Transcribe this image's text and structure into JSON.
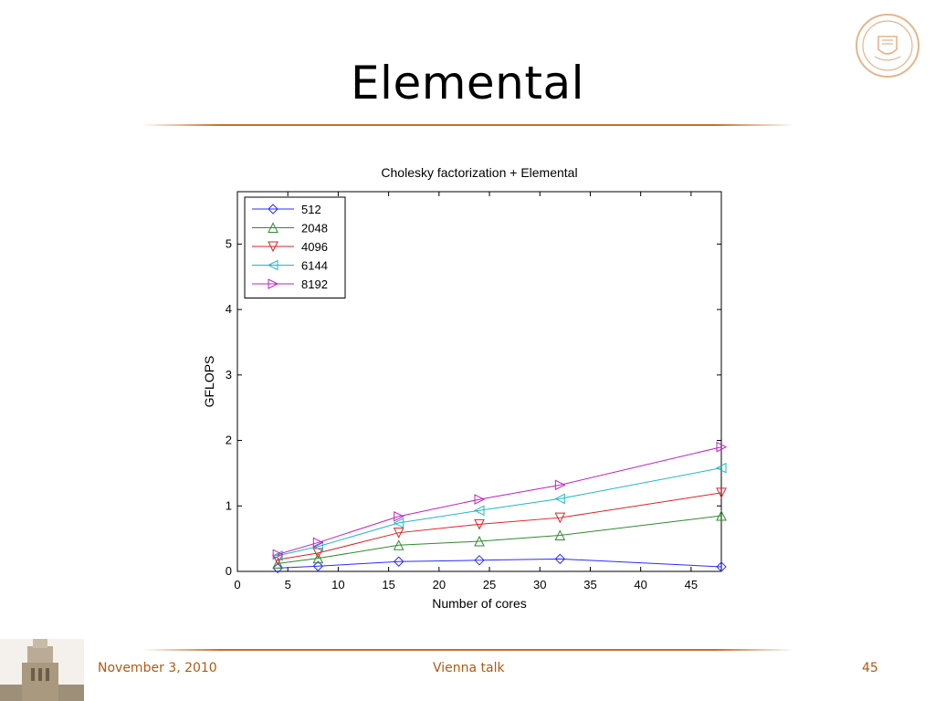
{
  "slide": {
    "title": "Elemental",
    "footer_date": "November 3, 2010",
    "footer_center": "Vienna talk",
    "page_number": "45",
    "accent_color": "#c8702a",
    "logo_icon": "university-seal-icon",
    "tower_icon": "university-tower-icon"
  },
  "chart_data": {
    "type": "line",
    "title": "Cholesky factorization + Elemental",
    "xlabel": "Number of cores",
    "ylabel": "GFLOPS",
    "xlim": [
      0,
      48
    ],
    "ylim": [
      0,
      5.8
    ],
    "xticks": [
      0,
      5,
      10,
      15,
      20,
      25,
      30,
      35,
      40,
      45
    ],
    "yticks": [
      0,
      1,
      2,
      3,
      4,
      5
    ],
    "grid": false,
    "legend_position": "top-left",
    "x": [
      4,
      8,
      16,
      24,
      32,
      48
    ],
    "series": [
      {
        "name": "512",
        "color": "#2b2bff",
        "marker": "diamond",
        "values": [
          0.05,
          0.08,
          0.15,
          0.17,
          0.19,
          0.07
        ]
      },
      {
        "name": "2048",
        "color": "#2e8b2e",
        "marker": "triangle-up",
        "values": [
          0.12,
          0.2,
          0.4,
          0.46,
          0.55,
          0.85
        ]
      },
      {
        "name": "4096",
        "color": "#e02020",
        "marker": "triangle-down",
        "values": [
          0.18,
          0.28,
          0.59,
          0.72,
          0.82,
          1.2
        ]
      },
      {
        "name": "6144",
        "color": "#20b8c8",
        "marker": "triangle-left",
        "values": [
          0.24,
          0.38,
          0.74,
          0.93,
          1.11,
          1.58
        ]
      },
      {
        "name": "8192",
        "color": "#c020c8",
        "marker": "triangle-right",
        "values": [
          0.26,
          0.44,
          0.84,
          1.1,
          1.32,
          1.9
        ]
      }
    ]
  }
}
